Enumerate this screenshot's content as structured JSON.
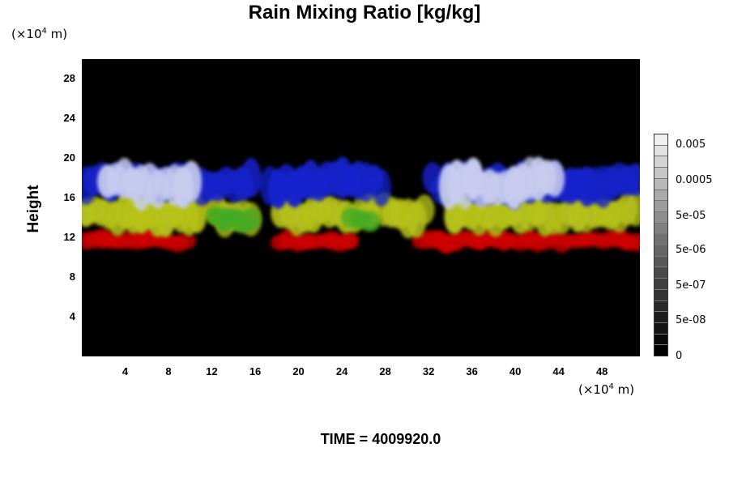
{
  "title": "Rain Mixing Ratio [kg/kg]",
  "y_unit_prefix": "(×10",
  "y_unit_exp": "4",
  "y_unit_suffix": " m)",
  "x_unit_prefix": "(×10",
  "x_unit_exp": "4",
  "x_unit_suffix": " m)",
  "time_label": "TIME = 4009920.0",
  "chart_data": {
    "type": "heatmap",
    "title": "Rain Mixing Ratio [kg/kg]",
    "ylabel": "Height",
    "xlabel": "",
    "xlim": [
      0,
      51.5
    ],
    "ylim": [
      0,
      30
    ],
    "x_ticks": [
      "4",
      "8",
      "12",
      "16",
      "20",
      "24",
      "28",
      "32",
      "36",
      "40",
      "44",
      "48"
    ],
    "y_ticks": [
      "4",
      "8",
      "12",
      "16",
      "20",
      "24",
      "28"
    ],
    "background": "#000000",
    "colorbar": {
      "labels": [
        "0.005",
        "0.0005",
        "5e-05",
        "5e-06",
        "5e-07",
        "5e-08",
        "0"
      ],
      "levels": 20,
      "colors": [
        "#f0f0f0",
        "#e2e2e2",
        "#d4d4d4",
        "#c6c6c6",
        "#b8b8b8",
        "#aaaaaa",
        "#9c9c9c",
        "#8e8e8e",
        "#808080",
        "#727272",
        "#656565",
        "#585858",
        "#4b4b4b",
        "#3f3f3f",
        "#333333",
        "#282828",
        "#1d1d1d",
        "#131313",
        "#090909",
        "#000000"
      ]
    },
    "layers": [
      {
        "color": "#cc0000",
        "bottom": 10.7,
        "top": 12.6,
        "segments": [
          [
            0,
            10
          ],
          [
            18,
            25
          ],
          [
            31,
            51.5
          ]
        ]
      },
      {
        "color": "#b6c21a",
        "bottom": 12.5,
        "top": 16.2,
        "segments": [
          [
            0,
            11
          ],
          [
            12,
            16
          ],
          [
            18,
            27
          ],
          [
            27.5,
            32
          ],
          [
            34,
            51.5
          ]
        ]
      },
      {
        "color": "#44aa22",
        "bottom": 12.8,
        "top": 15.0,
        "segments": [
          [
            12,
            16
          ],
          [
            24.5,
            27
          ]
        ]
      },
      {
        "color": "#1522cc",
        "bottom": 15.5,
        "top": 19.4,
        "segments": [
          [
            0,
            16
          ],
          [
            17,
            23
          ],
          [
            23,
            28
          ],
          [
            32,
            51.5
          ]
        ]
      },
      {
        "color": "#c8ccee",
        "bottom": 15.3,
        "top": 19.6,
        "segments": [
          [
            2,
            10.5
          ],
          [
            33.5,
            44
          ]
        ]
      }
    ]
  }
}
